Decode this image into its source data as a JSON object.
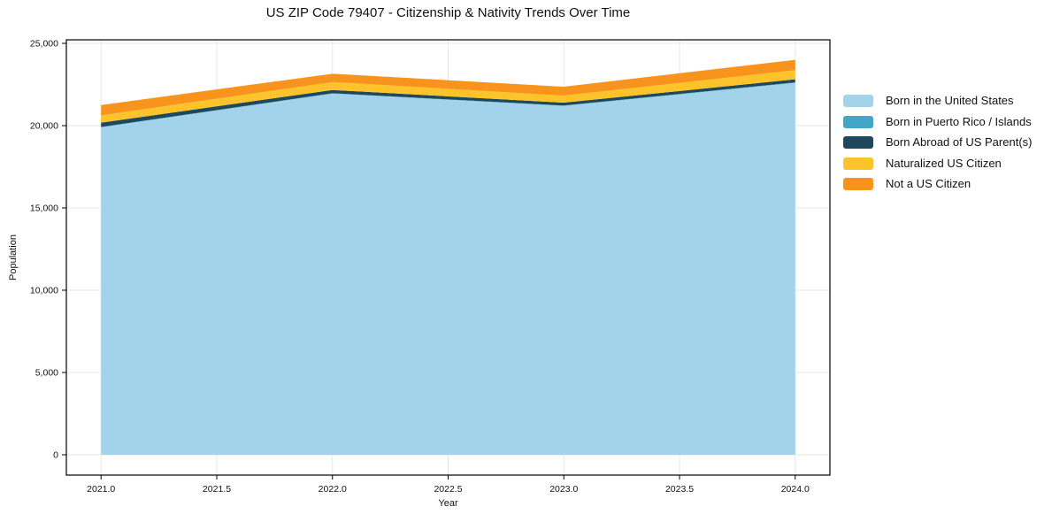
{
  "page": {
    "title": "US ZIP Code 79407 - Citizenship & Nativity Trends Over Time"
  },
  "chart_data": {
    "type": "area",
    "stacked": true,
    "title": "US ZIP Code 79407 - Citizenship & Nativity Trends Over Time",
    "xlabel": "Year",
    "ylabel": "Population",
    "x": [
      2021,
      2022,
      2023,
      2024
    ],
    "series": [
      {
        "id": "born-us",
        "name": "Born in the United States",
        "color": "#A3D3EA",
        "values": [
          19900,
          21950,
          21200,
          22600
        ]
      },
      {
        "id": "born-pr",
        "name": "Born in Puerto Rico / Islands",
        "color": "#43A6C6",
        "values": [
          20,
          20,
          20,
          30
        ]
      },
      {
        "id": "born-abroad",
        "name": "Born Abroad of US Parent(s)",
        "color": "#20485C",
        "values": [
          260,
          195,
          175,
          185
        ]
      },
      {
        "id": "naturalized",
        "name": "Naturalized US Citizen",
        "color": "#FCC42A",
        "values": [
          445,
          485,
          430,
          555
        ]
      },
      {
        "id": "not-citizen",
        "name": "Not a US Citizen",
        "color": "#F8941E",
        "values": [
          625,
          505,
          540,
          630
        ]
      }
    ],
    "xlim": [
      2020.85,
      2024.15
    ],
    "ylim": [
      -1236,
      25215
    ],
    "xticks": [
      2021.0,
      2021.5,
      2022.0,
      2022.5,
      2023.0,
      2023.5,
      2024.0
    ],
    "xtick_labels": [
      "2021.0",
      "2021.5",
      "2022.0",
      "2022.5",
      "2023.0",
      "2023.5",
      "2024.0"
    ],
    "yticks": [
      0,
      5000,
      10000,
      15000,
      20000,
      25000
    ],
    "ytick_labels": [
      "0",
      "5,000",
      "10,000",
      "15,000",
      "20,000",
      "25,000"
    ],
    "grid": true,
    "legend_position": "right",
    "colors": {
      "grid": "#E7E7E7",
      "spine": "#000000",
      "text": "#111111",
      "background": "#FFFFFF"
    }
  }
}
